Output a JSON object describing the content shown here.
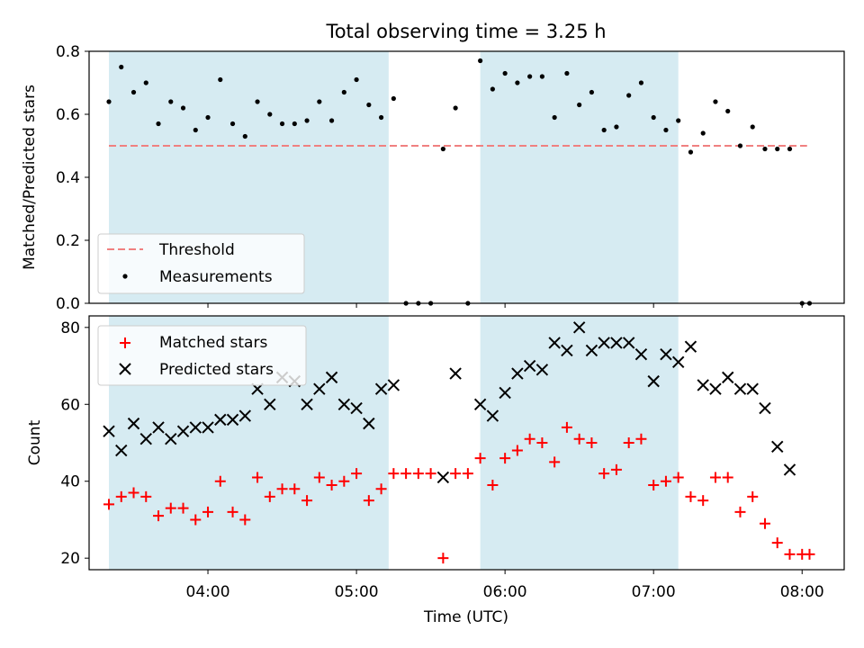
{
  "title": "Total observing time = 3.25 h",
  "colors": {
    "shade": "#add8e6",
    "threshold": "#f08080",
    "matched": "#ff0000",
    "predicted": "#000000",
    "measurement": "#000000"
  },
  "chart_data": [
    {
      "type": "scatter",
      "title": "Total observing time = 3.25 h",
      "ylabel": "Matched/Predicted stars",
      "xlim": [
        "03:12",
        "08:17"
      ],
      "ylim": [
        0,
        0.8
      ],
      "yticks": [
        "0.0",
        "0.2",
        "0.4",
        "0.6",
        "0.8"
      ],
      "shaded_intervals": [
        [
          "03:20",
          "05:13"
        ],
        [
          "05:50",
          "07:10"
        ]
      ],
      "threshold": {
        "name": "Threshold",
        "value": 0.5,
        "x_range": [
          "03:20",
          "08:02"
        ]
      },
      "legend": {
        "position": "lower left",
        "entries": [
          "Threshold",
          "Measurements"
        ]
      },
      "series": [
        {
          "name": "Measurements",
          "x": [
            "03:20",
            "03:25",
            "03:30",
            "03:35",
            "03:40",
            "03:45",
            "03:50",
            "03:55",
            "04:00",
            "04:05",
            "04:10",
            "04:15",
            "04:20",
            "04:25",
            "04:30",
            "04:35",
            "04:40",
            "04:45",
            "04:50",
            "04:55",
            "05:00",
            "05:05",
            "05:10",
            "05:15",
            "05:20",
            "05:25",
            "05:30",
            "05:35",
            "05:40",
            "05:45",
            "05:50",
            "05:55",
            "06:00",
            "06:05",
            "06:10",
            "06:15",
            "06:20",
            "06:25",
            "06:30",
            "06:35",
            "06:40",
            "06:45",
            "06:50",
            "06:55",
            "07:00",
            "07:05",
            "07:10",
            "07:15",
            "07:20",
            "07:25",
            "07:30",
            "07:35",
            "07:40",
            "07:45",
            "07:50",
            "07:55",
            "08:00",
            "08:03"
          ],
          "y": [
            0.64,
            0.75,
            0.67,
            0.7,
            0.57,
            0.64,
            0.62,
            0.55,
            0.59,
            0.71,
            0.57,
            0.53,
            0.64,
            0.6,
            0.57,
            0.57,
            0.58,
            0.64,
            0.58,
            0.67,
            0.71,
            0.63,
            0.59,
            0.65,
            0.0,
            0.0,
            0.0,
            0.49,
            0.62,
            0.0,
            0.77,
            0.68,
            0.73,
            0.7,
            0.72,
            0.72,
            0.59,
            0.73,
            0.63,
            0.67,
            0.55,
            0.56,
            0.66,
            0.7,
            0.59,
            0.55,
            0.58,
            0.48,
            0.54,
            0.64,
            0.61,
            0.5,
            0.56,
            0.49,
            0.49,
            0.49,
            0.0,
            0.0
          ]
        }
      ]
    },
    {
      "type": "scatter",
      "xlabel": "Time (UTC)",
      "ylabel": "Count",
      "xlim": [
        "03:12",
        "08:17"
      ],
      "ylim": [
        17,
        83
      ],
      "yticks": [
        "20",
        "40",
        "60",
        "80"
      ],
      "xticks": [
        "04:00",
        "05:00",
        "06:00",
        "07:00",
        "08:00"
      ],
      "shaded_intervals": [
        [
          "03:20",
          "05:13"
        ],
        [
          "05:50",
          "07:10"
        ]
      ],
      "legend": {
        "position": "upper left",
        "entries": [
          "Matched stars",
          "Predicted stars"
        ]
      },
      "series": [
        {
          "name": "Matched stars",
          "x": [
            "03:20",
            "03:25",
            "03:30",
            "03:35",
            "03:40",
            "03:45",
            "03:50",
            "03:55",
            "04:00",
            "04:05",
            "04:10",
            "04:15",
            "04:20",
            "04:25",
            "04:30",
            "04:35",
            "04:40",
            "04:45",
            "04:50",
            "04:55",
            "05:00",
            "05:05",
            "05:10",
            "05:15",
            "05:20",
            "05:25",
            "05:30",
            "05:35",
            "05:40",
            "05:45",
            "05:50",
            "05:55",
            "06:00",
            "06:05",
            "06:10",
            "06:15",
            "06:20",
            "06:25",
            "06:30",
            "06:35",
            "06:40",
            "06:45",
            "06:50",
            "06:55",
            "07:00",
            "07:05",
            "07:10",
            "07:15",
            "07:20",
            "07:25",
            "07:30",
            "07:35",
            "07:40",
            "07:45",
            "07:50",
            "07:55",
            "08:00",
            "08:03"
          ],
          "y": [
            34,
            36,
            37,
            36,
            31,
            33,
            33,
            30,
            32,
            40,
            32,
            30,
            41,
            36,
            38,
            38,
            35,
            41,
            39,
            40,
            42,
            35,
            38,
            42,
            42,
            42,
            42,
            20,
            42,
            42,
            46,
            39,
            46,
            48,
            51,
            50,
            45,
            54,
            51,
            50,
            42,
            43,
            50,
            51,
            39,
            40,
            41,
            36,
            35,
            41,
            41,
            32,
            36,
            29,
            24,
            21,
            21,
            21
          ]
        },
        {
          "name": "Predicted stars",
          "x": [
            "03:20",
            "03:25",
            "03:30",
            "03:35",
            "03:40",
            "03:45",
            "03:50",
            "03:55",
            "04:00",
            "04:05",
            "04:10",
            "04:15",
            "04:20",
            "04:25",
            "04:30",
            "04:35",
            "04:40",
            "04:45",
            "04:50",
            "04:55",
            "05:00",
            "05:05",
            "05:10",
            "05:15",
            "05:35",
            "05:40",
            "05:50",
            "05:55",
            "06:00",
            "06:05",
            "06:10",
            "06:15",
            "06:20",
            "06:25",
            "06:30",
            "06:35",
            "06:40",
            "06:45",
            "06:50",
            "06:55",
            "07:00",
            "07:05",
            "07:10",
            "07:15",
            "07:20",
            "07:25",
            "07:30",
            "07:35",
            "07:40",
            "07:45",
            "07:50",
            "07:55"
          ],
          "y": [
            53,
            48,
            55,
            51,
            54,
            51,
            53,
            54,
            54,
            56,
            56,
            57,
            64,
            60,
            67,
            66,
            60,
            64,
            67,
            60,
            59,
            55,
            64,
            65,
            41,
            68,
            60,
            57,
            63,
            68,
            70,
            69,
            76,
            74,
            80,
            74,
            76,
            76,
            76,
            73,
            66,
            73,
            71,
            75,
            65,
            64,
            67,
            64,
            64,
            59,
            49,
            43
          ]
        }
      ]
    }
  ]
}
